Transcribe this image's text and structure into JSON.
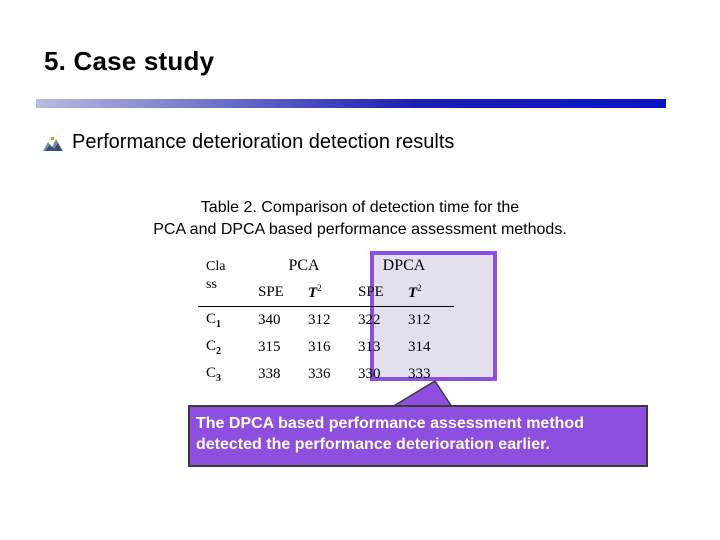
{
  "slide": {
    "title": "5. Case study",
    "bullet": "Performance deterioration detection results",
    "caption_line1": "Table 2. Comparison of detection time for the",
    "caption_line2": "PCA and DPCA based performance assessment methods."
  },
  "table": {
    "class_header_line1": "Cla",
    "class_header_line2": "ss",
    "groups": [
      "PCA",
      "DPCA"
    ],
    "sub_headers": [
      "SPE",
      "T",
      "SPE",
      "T"
    ],
    "t_superscript": "2",
    "rows": [
      {
        "cls": "C",
        "sub": "1",
        "values": [
          "340",
          "312",
          "322",
          "312"
        ]
      },
      {
        "cls": "C",
        "sub": "2",
        "values": [
          "315",
          "316",
          "313",
          "314"
        ]
      },
      {
        "cls": "C",
        "sub": "3",
        "values": [
          "338",
          "336",
          "330",
          "333"
        ]
      }
    ]
  },
  "callout": {
    "line1": "The DPCA based performance assessment method",
    "line2": "detected the performance deterioration earlier."
  },
  "colors": {
    "highlight_border": "#8e4ee0",
    "highlight_fill": "#e2e0ef",
    "callout_fill": "#8e4ee0",
    "rule": "#0a14c8"
  },
  "icons": {
    "bullet": "bullet-graphic-icon"
  }
}
